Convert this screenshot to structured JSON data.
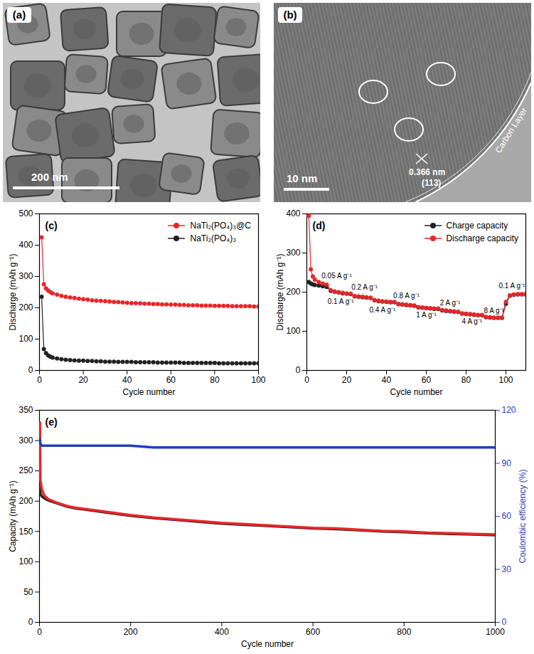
{
  "images": [
    {
      "panel_label": "(a)",
      "scale_bar": "200 nm"
    },
    {
      "panel_label": "(b)",
      "scale_bar": "10 nm",
      "annotations": [
        "0.366 nm",
        "(113)",
        "Carbon Layer"
      ]
    }
  ],
  "chart_data": [
    {
      "type": "line",
      "panel_label": "(c)",
      "x_label": "Cycle number",
      "y_label": "Discharge (mAh g⁻¹)",
      "x": [
        1,
        2,
        3,
        4,
        5,
        6,
        8,
        10,
        12,
        14,
        16,
        18,
        20,
        22,
        24,
        26,
        28,
        30,
        32,
        34,
        36,
        38,
        40,
        42,
        44,
        46,
        48,
        50,
        52,
        54,
        56,
        58,
        60,
        62,
        64,
        66,
        68,
        70,
        72,
        74,
        76,
        78,
        80,
        82,
        84,
        86,
        88,
        90,
        92,
        94,
        96,
        98,
        100
      ],
      "series": [
        {
          "name": "NaTi₂(PO₄)₃@C",
          "color": "#e8262a",
          "marker": "circle",
          "values": [
            425,
            275,
            262,
            255,
            250,
            246,
            242,
            238,
            235,
            233,
            231,
            229,
            227,
            226,
            224,
            223,
            222,
            221,
            220,
            219,
            218,
            217,
            216,
            215,
            215,
            214,
            213,
            213,
            212,
            212,
            211,
            211,
            210,
            210,
            209,
            209,
            208,
            208,
            208,
            207,
            207,
            207,
            206,
            206,
            206,
            206,
            205,
            205,
            205,
            205,
            205,
            204,
            204
          ]
        },
        {
          "name": "NaTi₂(PO₄)₃",
          "color": "#222222",
          "marker": "circle",
          "values": [
            235,
            68,
            55,
            48,
            44,
            41,
            38,
            36,
            34,
            33,
            32,
            31,
            31,
            30,
            30,
            29,
            29,
            28,
            28,
            28,
            27,
            27,
            27,
            27,
            26,
            26,
            26,
            26,
            26,
            25,
            25,
            25,
            25,
            25,
            25,
            24,
            24,
            24,
            24,
            24,
            24,
            24,
            24,
            23,
            23,
            23,
            23,
            23,
            23,
            23,
            23,
            23,
            23
          ]
        }
      ],
      "xlim": [
        0,
        100
      ],
      "xticks": [
        0,
        20,
        40,
        60,
        80,
        100
      ],
      "ylim": [
        0,
        500
      ],
      "yticks": [
        0,
        100,
        200,
        300,
        400,
        500
      ],
      "legend": "top-right"
    },
    {
      "type": "line",
      "panel_label": "(d)",
      "x_label": "Cycle number",
      "y_label": "Discharge (mAh g⁻¹)",
      "x": [
        1,
        2,
        3,
        4,
        6,
        8,
        10,
        12,
        14,
        16,
        18,
        20,
        22,
        24,
        26,
        28,
        30,
        32,
        34,
        36,
        38,
        40,
        42,
        44,
        46,
        48,
        50,
        52,
        54,
        56,
        58,
        60,
        62,
        64,
        66,
        68,
        70,
        72,
        74,
        76,
        78,
        80,
        82,
        84,
        86,
        88,
        90,
        92,
        94,
        96,
        98,
        100,
        102,
        104,
        106,
        108,
        110
      ],
      "series": [
        {
          "name": "Charge capacity",
          "color": "#222222",
          "marker": "circle",
          "values": [
            226,
            222,
            220,
            218,
            217,
            215,
            213,
            203,
            201,
            199,
            197,
            196,
            195,
            189,
            188,
            187,
            186,
            185,
            179,
            177,
            176,
            175,
            174,
            174,
            169,
            168,
            167,
            166,
            165,
            161,
            160,
            159,
            158,
            157,
            157,
            153,
            152,
            151,
            150,
            149,
            145,
            144,
            143,
            142,
            141,
            141,
            136,
            135,
            134,
            134,
            134,
            170,
            191,
            193,
            194,
            194,
            194
          ]
        },
        {
          "name": "Discharge capacity",
          "color": "#e8262a",
          "marker": "circle",
          "values": [
            395,
            258,
            240,
            232,
            226,
            222,
            219,
            205,
            202,
            200,
            198,
            197,
            196,
            190,
            189,
            188,
            187,
            186,
            180,
            178,
            177,
            176,
            175,
            175,
            170,
            169,
            168,
            167,
            166,
            162,
            161,
            160,
            159,
            158,
            158,
            154,
            153,
            152,
            151,
            150,
            146,
            145,
            144,
            143,
            142,
            142,
            137,
            136,
            135,
            135,
            135,
            175,
            192,
            194,
            195,
            195,
            195
          ]
        }
      ],
      "annotations": [
        {
          "text": "0.05 A g⁻¹",
          "x": 15,
          "y": 242
        },
        {
          "text": "0.1 A g⁻¹",
          "x": 17,
          "y": 176
        },
        {
          "text": "0.2 A g⁻¹",
          "x": 29,
          "y": 213
        },
        {
          "text": "0.4 A g⁻¹",
          "x": 38,
          "y": 154
        },
        {
          "text": "0.8 A g⁻¹",
          "x": 50,
          "y": 190
        },
        {
          "text": "1 A g⁻¹",
          "x": 60,
          "y": 142
        },
        {
          "text": "2 A g⁻¹",
          "x": 72,
          "y": 172
        },
        {
          "text": "4 A g⁻¹",
          "x": 83,
          "y": 125
        },
        {
          "text": "8 A g⁻¹",
          "x": 94,
          "y": 152
        },
        {
          "text": "0.1 A g⁻¹",
          "x": 103,
          "y": 215
        }
      ],
      "xlim": [
        0,
        110
      ],
      "xticks": [
        0,
        20,
        40,
        60,
        80,
        100
      ],
      "ylim": [
        0,
        400
      ],
      "yticks": [
        0,
        100,
        200,
        300,
        400
      ],
      "legend": "top-right"
    },
    {
      "type": "line",
      "panel_label": "(e)",
      "x_label": "Cycle number",
      "y_label": "Capacity (mAh g⁻¹)",
      "y2_label": "Coulombic efficiency (%)",
      "x": [
        1,
        2,
        5,
        10,
        20,
        40,
        60,
        80,
        100,
        150,
        200,
        250,
        300,
        350,
        400,
        450,
        500,
        550,
        600,
        650,
        700,
        750,
        800,
        850,
        900,
        950,
        1000
      ],
      "series": [
        {
          "color": "#222222",
          "values": [
            225,
            212,
            208,
            205,
            201,
            196,
            191,
            188,
            186,
            181,
            176,
            172,
            169,
            166,
            163,
            161,
            159,
            157,
            155,
            154,
            152,
            150,
            149,
            147,
            146,
            145,
            144
          ]
        },
        {
          "color": "#e8262a",
          "values": [
            330,
            235,
            220,
            210,
            203,
            197,
            192,
            189,
            187,
            182,
            177,
            173,
            170,
            167,
            164,
            162,
            160,
            158,
            156,
            155,
            153,
            151,
            150,
            148,
            147,
            146,
            145
          ]
        },
        {
          "color": "#1f3fbf",
          "axis": "y2",
          "values": [
            104,
            101,
            100,
            100,
            100,
            100,
            100,
            100,
            100,
            100,
            100,
            99,
            99,
            99,
            99,
            99,
            99,
            99,
            99,
            99,
            99,
            99,
            99,
            99,
            99,
            99,
            99
          ]
        }
      ],
      "xlim": [
        0,
        1000
      ],
      "xticks": [
        0,
        200,
        400,
        600,
        800,
        1000
      ],
      "ylim": [
        0,
        350
      ],
      "yticks": [
        0,
        50,
        100,
        150,
        200,
        250,
        300,
        350
      ],
      "y2lim": [
        0,
        120
      ],
      "y2ticks": [
        0,
        30,
        60,
        90,
        120
      ]
    }
  ]
}
